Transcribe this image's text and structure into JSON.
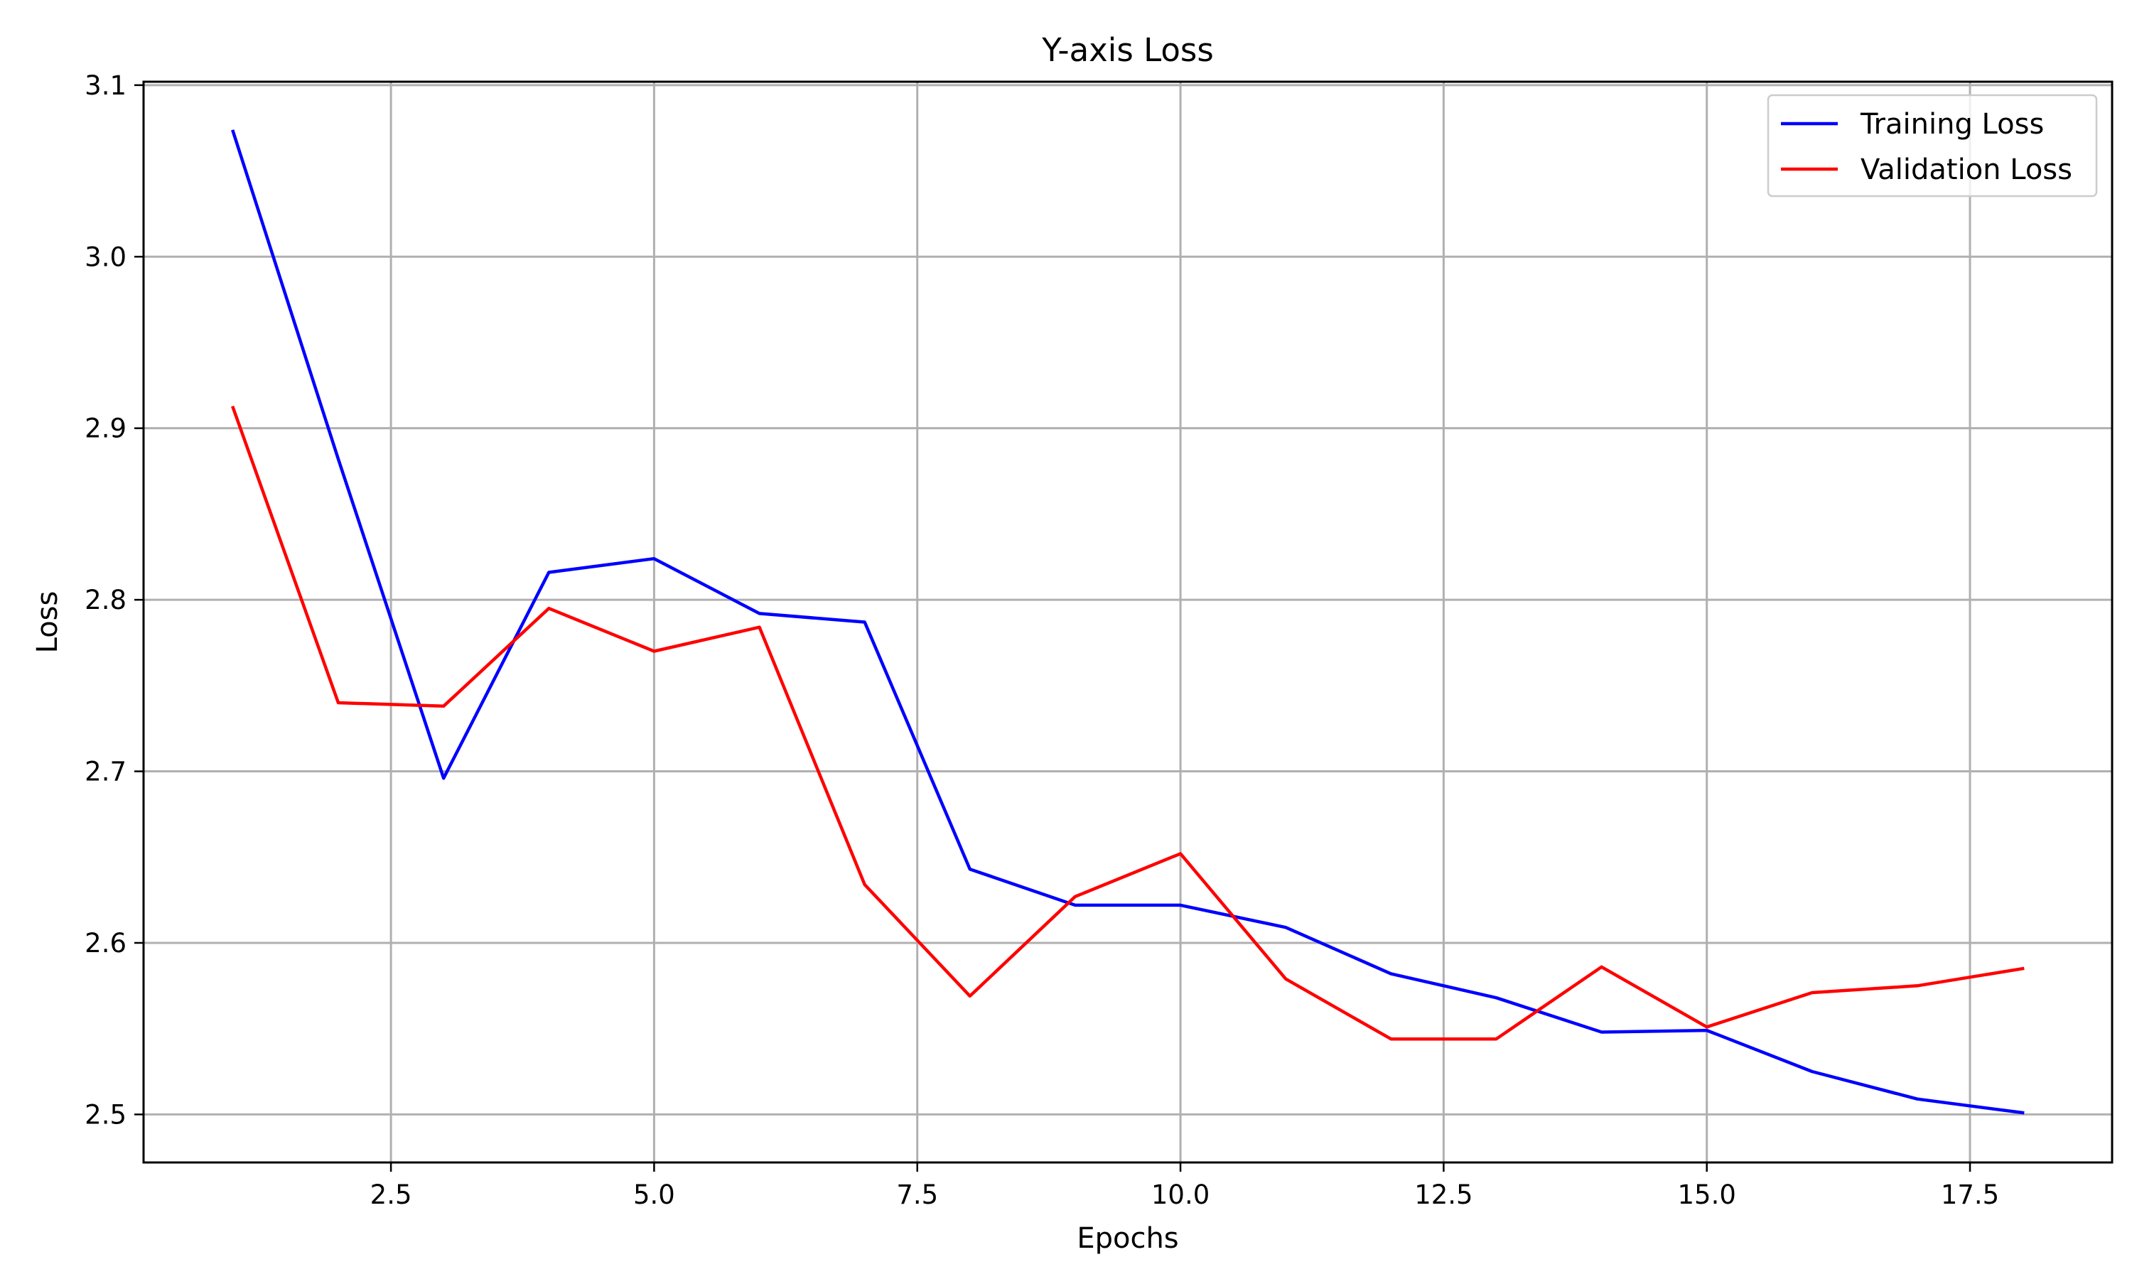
{
  "chart_data": {
    "type": "line",
    "title": "Y-axis Loss",
    "xlabel": "Epochs",
    "ylabel": "Loss",
    "xlim": [
      0.15,
      18.85
    ],
    "ylim": [
      2.472,
      3.102
    ],
    "xticks": [
      2.5,
      5.0,
      7.5,
      10.0,
      12.5,
      15.0,
      17.5
    ],
    "xtick_labels": [
      "2.5",
      "5.0",
      "7.5",
      "10.0",
      "12.5",
      "15.0",
      "17.5"
    ],
    "yticks": [
      2.5,
      2.6,
      2.7,
      2.8,
      2.9,
      3.0,
      3.1
    ],
    "ytick_labels": [
      "2.5",
      "2.6",
      "2.7",
      "2.8",
      "2.9",
      "3.0",
      "3.1"
    ],
    "grid": true,
    "legend_position": "top-right",
    "x": [
      1,
      2,
      3,
      4,
      5,
      6,
      7,
      8,
      9,
      10,
      11,
      12,
      13,
      14,
      15,
      16,
      17,
      18
    ],
    "series": [
      {
        "name": "Training Loss",
        "color": "#0000ff",
        "values": [
          3.073,
          2.882,
          2.696,
          2.816,
          2.824,
          2.792,
          2.787,
          2.643,
          2.622,
          2.622,
          2.609,
          2.582,
          2.568,
          2.548,
          2.549,
          2.525,
          2.509,
          2.501
        ]
      },
      {
        "name": "Validation Loss",
        "color": "#ff0000",
        "values": [
          2.912,
          2.74,
          2.738,
          2.795,
          2.77,
          2.784,
          2.634,
          2.569,
          2.627,
          2.652,
          2.579,
          2.544,
          2.544,
          2.586,
          2.551,
          2.571,
          2.575,
          2.585
        ]
      }
    ]
  }
}
